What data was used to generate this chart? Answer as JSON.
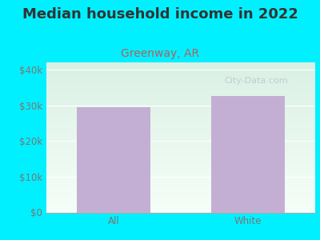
{
  "title": "Median household income in 2022",
  "subtitle": "Greenway, AR",
  "categories": [
    "All",
    "White"
  ],
  "values": [
    29500,
    32500
  ],
  "bar_color": "#c4afd4",
  "background_outer": "#00f0ff",
  "subtitle_color": "#b06060",
  "title_color": "#333333",
  "tick_label_color": "#777777",
  "ytick_labels": [
    "$0",
    "$10k",
    "$20k",
    "$30k",
    "$40k"
  ],
  "ytick_values": [
    0,
    10000,
    20000,
    30000,
    40000
  ],
  "ylim": [
    0,
    42000
  ],
  "watermark": "City-Data.com",
  "title_fontsize": 13,
  "subtitle_fontsize": 10,
  "tick_fontsize": 8.5,
  "grad_top": "#daf0e4",
  "grad_bottom": "#f5fef8"
}
